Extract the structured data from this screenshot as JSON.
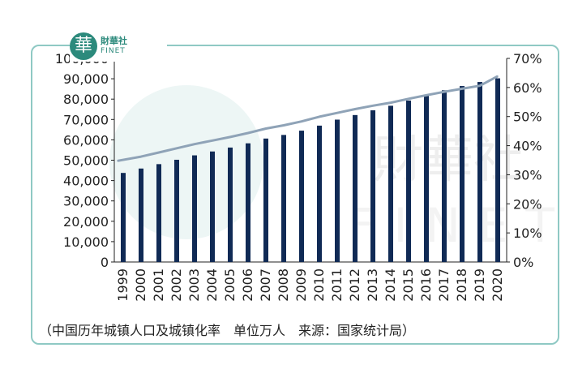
{
  "logo": {
    "mark": "華",
    "name_cn": "財華社",
    "name_en": "FINET"
  },
  "caption": "（中国历年城镇人口及城镇化率　单位万人　来源：国家统计局）",
  "colors": {
    "bar": "#102a55",
    "line": "#8fa3b7",
    "frame": "#8fc9c4",
    "brand": "#2c8a7c"
  },
  "chart_data": {
    "type": "bar",
    "categories": [
      "1999",
      "2000",
      "2001",
      "2002",
      "2003",
      "2004",
      "2005",
      "2006",
      "2007",
      "2008",
      "2009",
      "2010",
      "2011",
      "2012",
      "2013",
      "2014",
      "2015",
      "2016",
      "2017",
      "2018",
      "2019",
      "2020"
    ],
    "series": [
      {
        "type": "bar",
        "axis": "left",
        "values": [
          43748,
          45906,
          48064,
          50212,
          52376,
          54283,
          56212,
          58288,
          60633,
          62403,
          64512,
          66978,
          69927,
          72175,
          74502,
          76738,
          79302,
          81924,
          84343,
          86433,
          88426,
          90220
        ]
      },
      {
        "type": "line",
        "axis": "right",
        "values": [
          34.78,
          36.22,
          37.66,
          39.09,
          40.53,
          41.76,
          42.99,
          44.34,
          45.89,
          46.99,
          48.34,
          49.95,
          51.27,
          52.57,
          53.73,
          54.77,
          56.1,
          57.35,
          58.52,
          59.58,
          60.6,
          63.89
        ]
      }
    ],
    "y_left": {
      "lim": [
        0,
        100000
      ],
      "ticks": [
        "0",
        "10,000",
        "20,000",
        "30,000",
        "40,000",
        "50,000",
        "60,000",
        "70,000",
        "80,000",
        "90,000",
        "100,000"
      ]
    },
    "y_right": {
      "lim": [
        0,
        70
      ],
      "ticks": [
        "0%",
        "10%",
        "20%",
        "30%",
        "40%",
        "50%",
        "60%",
        "70%"
      ]
    },
    "x_tick_rotation": "vertical",
    "grid": false,
    "legend": "none"
  }
}
